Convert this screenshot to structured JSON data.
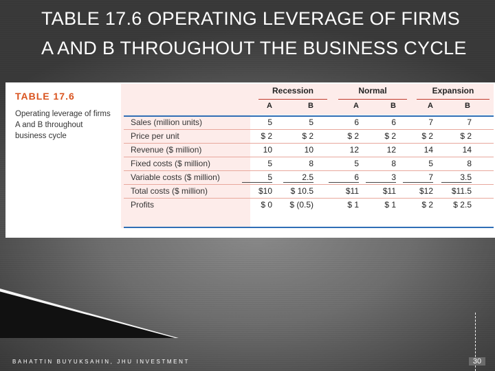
{
  "slide": {
    "title": "TABLE 17.6 OPERATING LEVERAGE OF FIRMS A AND B THROUGHOUT THE BUSINESS CYCLE",
    "footer": "BAHATTIN BUYUKSAHIN, JHU INVESTMENT",
    "page_number": "30"
  },
  "table": {
    "label": "TABLE 17.6",
    "caption": "Operating leverage of firms A and B throughout business cycle",
    "groups": [
      "Recession",
      "Normal",
      "Expansion"
    ],
    "columns": [
      "A",
      "B",
      "A",
      "B",
      "A",
      "B"
    ],
    "rows": [
      {
        "label": "Sales (million units)",
        "cells": [
          "5",
          "5",
          "6",
          "6",
          "7",
          "7"
        ]
      },
      {
        "label": "Price per unit",
        "cells": [
          "$ 2",
          "$ 2",
          "$ 2",
          "$ 2",
          "$ 2",
          "$ 2"
        ]
      },
      {
        "label": "Revenue ($ million)",
        "cells": [
          "10",
          "10",
          "12",
          "12",
          "14",
          "14"
        ]
      },
      {
        "label": "Fixed costs ($ million)",
        "cells": [
          "5",
          "8",
          "5",
          "8",
          "5",
          "8"
        ]
      },
      {
        "label": "Variable costs ($ million)",
        "cells": [
          "5",
          "2.5",
          "6",
          "3",
          "7",
          "3.5"
        ]
      },
      {
        "label": "Total costs ($ million)",
        "cells": [
          "$10",
          "$ 10.5",
          "$11",
          "$11",
          "$12",
          "$11.5"
        ]
      },
      {
        "label": "Profits",
        "cells": [
          "$ 0",
          "$ (0.5)",
          "$ 1",
          "$ 1",
          "$ 2",
          "$ 2.5"
        ]
      }
    ]
  },
  "colors": {
    "title_text": "#ffffff",
    "table_label": "#d9531e",
    "header_band": "#fdecea",
    "rule_blue": "#2f6eb5",
    "rule_red": "#c0392b"
  }
}
